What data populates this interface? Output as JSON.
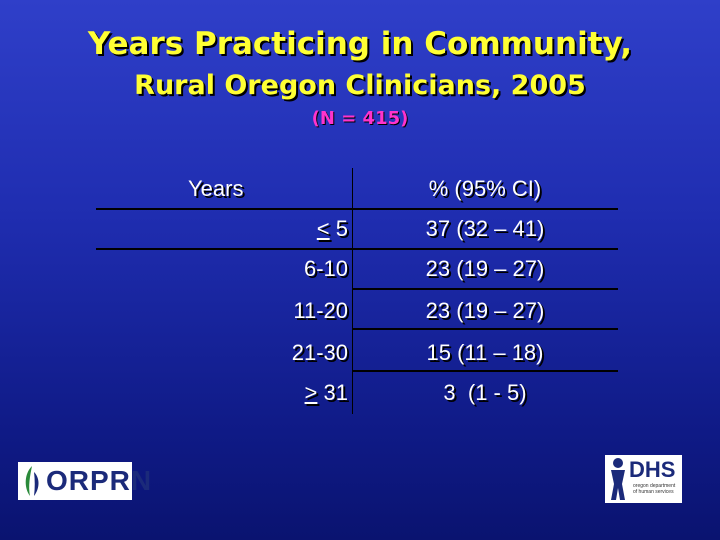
{
  "title": {
    "line1": "Years Practicing in Community,",
    "line2": "Rural Oregon Clinicians, 2005",
    "line3": "(N = 415)"
  },
  "table": {
    "col_years": "Years",
    "col_pct": "% (95% CI)",
    "rows": [
      {
        "years_sym": "<",
        "years_rest": " 5",
        "pct": "37 (32 – 41)"
      },
      {
        "years": "6-10",
        "pct": "23 (19 – 27)"
      },
      {
        "years": "11-20",
        "pct": "23 (19 – 27)"
      },
      {
        "years": "21-30",
        "pct": "15 (11 – 18)"
      },
      {
        "years_sym": ">",
        "years_rest": " 31",
        "pct": "3  (1 - 5)"
      }
    ]
  },
  "logos": {
    "left": "ORPRN",
    "right": "DHS",
    "right_sub": "oregon department\nof human services"
  },
  "colors": {
    "title": "#ffff33",
    "subtitle": "#ff33cc",
    "background": "#1f2db0"
  }
}
